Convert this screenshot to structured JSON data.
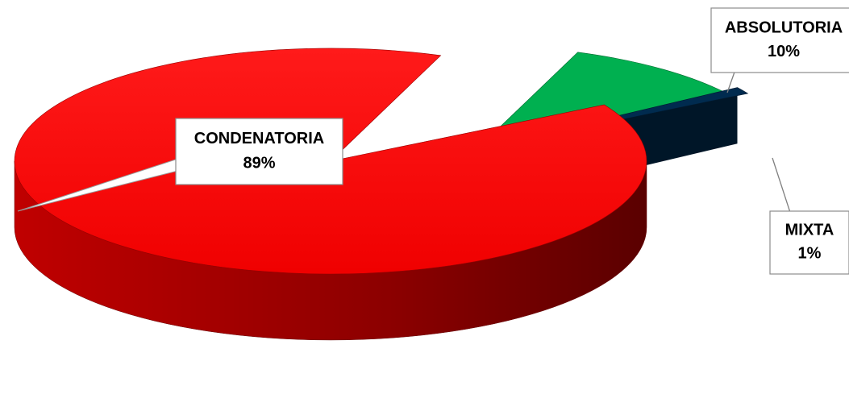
{
  "chart_data": {
    "type": "pie",
    "style": "3d-exploded",
    "categories": [
      "CONDENATORIA",
      "ABSOLUTORIA",
      "MIXTA"
    ],
    "values": [
      89,
      10,
      1
    ],
    "value_labels": [
      "89%",
      "10%",
      "1%"
    ],
    "unit": "%",
    "colors": [
      "#ff0000",
      "#00b050",
      "#002b4f"
    ],
    "label_style": "callout-boxes"
  }
}
